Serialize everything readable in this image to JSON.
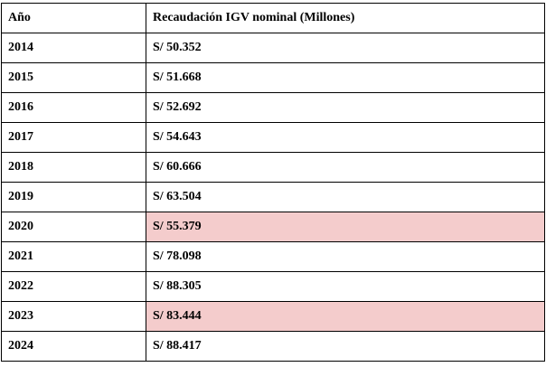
{
  "table": {
    "headers": [
      "Año",
      "Recaudación IGV nominal (Millones)"
    ],
    "rows": [
      {
        "year": "2014",
        "value": "S/ 50.352",
        "highlight": false
      },
      {
        "year": "2015",
        "value": "S/ 51.668",
        "highlight": false
      },
      {
        "year": "2016",
        "value": "S/ 52.692",
        "highlight": false
      },
      {
        "year": "2017",
        "value": "S/ 54.643",
        "highlight": false
      },
      {
        "year": "2018",
        "value": "S/ 60.666",
        "highlight": false
      },
      {
        "year": "2019",
        "value": "S/ 63.504",
        "highlight": false
      },
      {
        "year": "2020",
        "value": "S/ 55.379",
        "highlight": true
      },
      {
        "year": "2021",
        "value": "S/ 78.098",
        "highlight": false
      },
      {
        "year": "2022",
        "value": "S/ 88.305",
        "highlight": false
      },
      {
        "year": "2023",
        "value": "S/ 83.444",
        "highlight": true
      },
      {
        "year": "2024",
        "value": "S/ 88.417",
        "highlight": false
      }
    ],
    "highlight_color": "#f4cccc"
  }
}
